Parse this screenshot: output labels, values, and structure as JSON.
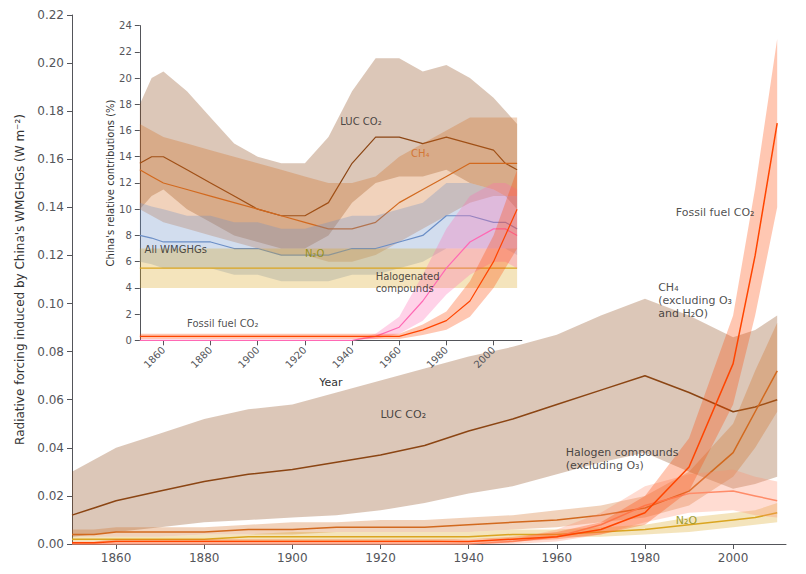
{
  "chart_data": [
    {
      "type": "line",
      "ylabel": "Radiative forcing induced by China's WMGHGs (W m⁻²)",
      "x": [
        1850,
        1855,
        1860,
        1870,
        1880,
        1890,
        1900,
        1910,
        1920,
        1930,
        1940,
        1950,
        1960,
        1970,
        1980,
        1990,
        2000,
        2005,
        2010
      ],
      "xlim": [
        1850,
        2012
      ],
      "xticks": [
        1860,
        1880,
        1900,
        1920,
        1940,
        1960,
        1980,
        2000
      ],
      "ylim": [
        0.0,
        0.22
      ],
      "yticks": [
        {
          "value": 0.0,
          "label": "0.00"
        },
        {
          "value": 0.02,
          "label": "0.02"
        },
        {
          "value": 0.04,
          "label": "0.04"
        },
        {
          "value": 0.06,
          "label": "0.06"
        },
        {
          "value": 0.08,
          "label": "0.08"
        },
        {
          "value": 0.1,
          "label": "0.10"
        },
        {
          "value": 0.12,
          "label": "0.12"
        },
        {
          "value": 0.14,
          "label": "0.14"
        },
        {
          "value": 0.16,
          "label": "0.16"
        },
        {
          "value": 0.18,
          "label": "0.18"
        },
        {
          "value": 0.2,
          "label": "0.20"
        },
        {
          "value": 0.22,
          "label": "0.22"
        }
      ],
      "grid": false,
      "series": [
        {
          "color": "#8B4513",
          "values": [
            0.012,
            0.015,
            0.018,
            0.022,
            0.026,
            0.029,
            0.031,
            0.034,
            0.037,
            0.041,
            0.047,
            0.052,
            0.058,
            0.064,
            0.07,
            0.063,
            0.055,
            0.057,
            0.06
          ],
          "low": [
            0.003,
            0.004,
            0.005,
            0.007,
            0.009,
            0.01,
            0.011,
            0.012,
            0.014,
            0.017,
            0.021,
            0.024,
            0.029,
            0.034,
            0.038,
            0.03,
            0.023,
            0.025,
            0.028
          ],
          "high": [
            0.03,
            0.035,
            0.04,
            0.046,
            0.052,
            0.056,
            0.058,
            0.063,
            0.068,
            0.073,
            0.078,
            0.082,
            0.087,
            0.095,
            0.102,
            0.095,
            0.086,
            0.089,
            0.095
          ]
        },
        {
          "color": "#D2691E",
          "values": [
            0.004,
            0.004,
            0.005,
            0.005,
            0.005,
            0.006,
            0.006,
            0.007,
            0.007,
            0.007,
            0.008,
            0.009,
            0.01,
            0.012,
            0.015,
            0.022,
            0.038,
            0.055,
            0.072
          ],
          "low": [
            0.003,
            0.003,
            0.003,
            0.003,
            0.004,
            0.004,
            0.004,
            0.005,
            0.005,
            0.005,
            0.005,
            0.006,
            0.007,
            0.009,
            0.011,
            0.016,
            0.028,
            0.04,
            0.055
          ],
          "high": [
            0.006,
            0.006,
            0.007,
            0.007,
            0.007,
            0.008,
            0.009,
            0.009,
            0.01,
            0.01,
            0.011,
            0.012,
            0.014,
            0.016,
            0.02,
            0.03,
            0.05,
            0.072,
            0.092
          ]
        },
        {
          "color": "#DAA520",
          "values": [
            0.002,
            0.002,
            0.002,
            0.002,
            0.002,
            0.003,
            0.003,
            0.003,
            0.003,
            0.003,
            0.003,
            0.004,
            0.004,
            0.005,
            0.006,
            0.008,
            0.01,
            0.011,
            0.013
          ],
          "low": [
            0.001,
            0.001,
            0.001,
            0.001,
            0.001,
            0.001,
            0.001,
            0.001,
            0.001,
            0.001,
            0.002,
            0.002,
            0.003,
            0.003,
            0.004,
            0.005,
            0.007,
            0.008,
            0.009
          ],
          "high": [
            0.003,
            0.003,
            0.003,
            0.003,
            0.004,
            0.004,
            0.005,
            0.005,
            0.005,
            0.005,
            0.005,
            0.006,
            0.006,
            0.007,
            0.008,
            0.011,
            0.013,
            0.014,
            0.017
          ]
        },
        {
          "color": "#FF8C69",
          "values": [
            0.0,
            0.0,
            0.0,
            0.0,
            0.0,
            0.0,
            0.0,
            0.0,
            0.0,
            0.0,
            0.0,
            0.001,
            0.003,
            0.008,
            0.016,
            0.021,
            0.022,
            0.02,
            0.018
          ],
          "low": [
            0.0,
            0.0,
            0.0,
            0.0,
            0.0,
            0.0,
            0.0,
            0.0,
            0.0,
            0.0,
            0.0,
            0.0,
            0.001,
            0.004,
            0.009,
            0.013,
            0.014,
            0.012,
            0.011
          ],
          "high": [
            0.0,
            0.0,
            0.0,
            0.0,
            0.0,
            0.0,
            0.0,
            0.0,
            0.0,
            0.0,
            0.001,
            0.002,
            0.006,
            0.013,
            0.024,
            0.029,
            0.031,
            0.028,
            0.026
          ]
        },
        {
          "color": "#FF4500",
          "values": [
            0.0005,
            0.0005,
            0.001,
            0.001,
            0.001,
            0.001,
            0.001,
            0.001,
            0.001,
            0.001,
            0.001,
            0.002,
            0.003,
            0.006,
            0.013,
            0.032,
            0.075,
            0.12,
            0.175
          ],
          "low": [
            0.0002,
            0.0002,
            0.0005,
            0.0005,
            0.0005,
            0.0005,
            0.0005,
            0.0005,
            0.0005,
            0.0005,
            0.0005,
            0.001,
            0.002,
            0.004,
            0.008,
            0.022,
            0.058,
            0.095,
            0.14
          ],
          "high": [
            0.001,
            0.001,
            0.002,
            0.002,
            0.002,
            0.002,
            0.002,
            0.002,
            0.002,
            0.002,
            0.002,
            0.003,
            0.005,
            0.009,
            0.02,
            0.044,
            0.095,
            0.148,
            0.21
          ]
        }
      ],
      "annotations": [
        {
          "text": "LUC CO₂",
          "x": 1920,
          "y": 0.051,
          "color": "#222222"
        },
        {
          "text": "Fossil fuel CO₂",
          "x": 1987,
          "y": 0.135,
          "color": "#222222"
        },
        {
          "text": "CH₄\n(excluding O₃\nand H₂O)",
          "x": 1983,
          "y": 0.093,
          "color": "#222222"
        },
        {
          "text": "Halogen compounds\n(excluding O₃)",
          "x": 1962,
          "y": 0.03,
          "color": "#222222"
        },
        {
          "text": "N₂O",
          "x": 1987,
          "y": 0.007,
          "color": "#888800"
        }
      ]
    },
    {
      "type": "line",
      "xlabel": "Year",
      "ylabel": "China's relative contributions (%)",
      "x": [
        1850,
        1855,
        1860,
        1870,
        1880,
        1890,
        1900,
        1910,
        1920,
        1930,
        1940,
        1950,
        1960,
        1970,
        1980,
        1990,
        2000,
        2005,
        2010
      ],
      "xlim": [
        1850,
        2012
      ],
      "xticks": [
        1860,
        1880,
        1900,
        1920,
        1940,
        1960,
        1980,
        2000
      ],
      "ylim": [
        0,
        24
      ],
      "yticks": [
        0,
        2,
        4,
        6,
        8,
        10,
        12,
        14,
        16,
        18,
        20,
        22,
        24
      ],
      "grid": false,
      "series": [
        {
          "color": "#8B4513",
          "values": [
            13.5,
            14.0,
            14.0,
            13.0,
            12.0,
            11.0,
            10.0,
            9.5,
            9.5,
            10.5,
            13.5,
            15.5,
            15.5,
            15.0,
            15.5,
            15.0,
            14.5,
            13.5,
            13.0
          ],
          "low": [
            10.0,
            11.0,
            11.5,
            10.0,
            9.0,
            8.0,
            7.5,
            7.0,
            7.0,
            8.0,
            10.5,
            12.0,
            12.5,
            12.5,
            13.0,
            12.0,
            11.5,
            11.0,
            10.0
          ],
          "high": [
            18.0,
            20.0,
            20.5,
            19.0,
            17.0,
            15.0,
            14.0,
            13.5,
            13.5,
            15.5,
            19.0,
            21.5,
            21.5,
            20.5,
            21.0,
            20.0,
            18.5,
            17.5,
            16.5
          ]
        },
        {
          "color": "#D2691E",
          "values": [
            13.0,
            12.5,
            12.0,
            11.5,
            11.0,
            10.5,
            10.0,
            9.5,
            9.0,
            8.5,
            8.5,
            9.0,
            10.5,
            11.5,
            12.5,
            13.5,
            13.5,
            13.5,
            13.5
          ],
          "low": [
            10.0,
            9.5,
            9.0,
            8.5,
            8.0,
            7.5,
            7.0,
            6.5,
            6.5,
            6.0,
            6.0,
            6.5,
            7.5,
            8.5,
            9.5,
            10.5,
            11.0,
            11.0,
            11.0
          ],
          "high": [
            16.5,
            16.0,
            15.5,
            15.0,
            14.5,
            14.0,
            13.5,
            13.0,
            12.5,
            12.0,
            12.0,
            12.5,
            14.0,
            15.0,
            16.0,
            17.0,
            17.0,
            17.0,
            17.0
          ]
        },
        {
          "color": "#6B8EC6",
          "values": [
            8.0,
            7.8,
            7.5,
            7.5,
            7.5,
            7.0,
            7.0,
            6.5,
            6.5,
            6.5,
            7.0,
            7.0,
            7.5,
            8.0,
            9.5,
            9.5,
            9.0,
            9.0,
            8.5
          ],
          "low": [
            6.0,
            5.8,
            5.5,
            5.5,
            5.5,
            5.0,
            5.0,
            4.5,
            4.5,
            4.5,
            5.0,
            5.0,
            5.5,
            6.0,
            7.0,
            7.0,
            7.0,
            7.0,
            6.5
          ],
          "high": [
            10.5,
            10.2,
            10.0,
            9.5,
            9.5,
            9.0,
            9.0,
            8.5,
            8.5,
            9.0,
            9.5,
            9.5,
            10.0,
            10.5,
            12.0,
            12.0,
            11.5,
            11.0,
            11.0
          ]
        },
        {
          "color": "#DAA520",
          "values": [
            5.5,
            5.5,
            5.5,
            5.5,
            5.5,
            5.5,
            5.5,
            5.5,
            5.5,
            5.5,
            5.5,
            5.5,
            5.5,
            5.5,
            5.5,
            5.5,
            5.5,
            5.5,
            5.5
          ],
          "low": [
            4.0,
            4.0,
            4.0,
            4.0,
            4.0,
            4.0,
            4.0,
            4.0,
            4.0,
            4.0,
            4.0,
            4.0,
            4.0,
            4.0,
            4.0,
            4.0,
            4.0,
            4.0,
            4.0
          ],
          "high": [
            7.0,
            7.0,
            7.0,
            7.0,
            7.0,
            7.0,
            7.0,
            7.0,
            7.0,
            7.0,
            7.0,
            7.0,
            7.0,
            7.0,
            7.0,
            7.0,
            7.0,
            7.0,
            7.0
          ]
        },
        {
          "color": "#FF69B4",
          "values": [
            0.0,
            0.0,
            0.0,
            0.0,
            0.0,
            0.0,
            0.0,
            0.0,
            0.0,
            0.0,
            0.0,
            0.3,
            1.0,
            3.0,
            5.5,
            7.5,
            8.5,
            8.5,
            8.0
          ],
          "low": [
            0.0,
            0.0,
            0.0,
            0.0,
            0.0,
            0.0,
            0.0,
            0.0,
            0.0,
            0.0,
            0.0,
            0.1,
            0.5,
            1.5,
            3.5,
            5.0,
            6.0,
            6.0,
            5.5
          ],
          "high": [
            0.0,
            0.0,
            0.0,
            0.0,
            0.0,
            0.0,
            0.0,
            0.0,
            0.0,
            0.0,
            0.0,
            0.5,
            1.8,
            5.0,
            8.5,
            11.0,
            12.0,
            12.0,
            11.5
          ]
        },
        {
          "color": "#FF4500",
          "values": [
            0.3,
            0.3,
            0.3,
            0.3,
            0.3,
            0.3,
            0.3,
            0.3,
            0.3,
            0.3,
            0.3,
            0.3,
            0.3,
            0.8,
            1.5,
            3.0,
            6.0,
            8.0,
            10.0
          ],
          "low": [
            0.1,
            0.1,
            0.1,
            0.1,
            0.1,
            0.1,
            0.1,
            0.1,
            0.1,
            0.1,
            0.1,
            0.1,
            0.1,
            0.4,
            0.8,
            1.8,
            4.0,
            5.5,
            7.0
          ],
          "high": [
            0.5,
            0.5,
            0.5,
            0.5,
            0.5,
            0.5,
            0.5,
            0.5,
            0.5,
            0.5,
            0.5,
            0.5,
            0.5,
            1.2,
            2.2,
            4.5,
            8.0,
            10.5,
            13.0
          ]
        }
      ],
      "annotations": [
        {
          "text": "LUC CO₂",
          "x": 1935,
          "y": 16.2,
          "color": "#222222"
        },
        {
          "text": "CH₄",
          "x": 1965,
          "y": 13.8,
          "color": "#D2691E"
        },
        {
          "text": "All WMGHGs",
          "x": 1852,
          "y": 6.5,
          "color": "#222222"
        },
        {
          "text": "N₂O",
          "x": 1920,
          "y": 6.2,
          "color": "#888800"
        },
        {
          "text": "Fossil fuel CO₂",
          "x": 1870,
          "y": 0.8,
          "color": "#222222"
        },
        {
          "text": "Halogenated\ncompounds",
          "x": 1950,
          "y": 3.5,
          "color": "#222222"
        }
      ]
    }
  ]
}
